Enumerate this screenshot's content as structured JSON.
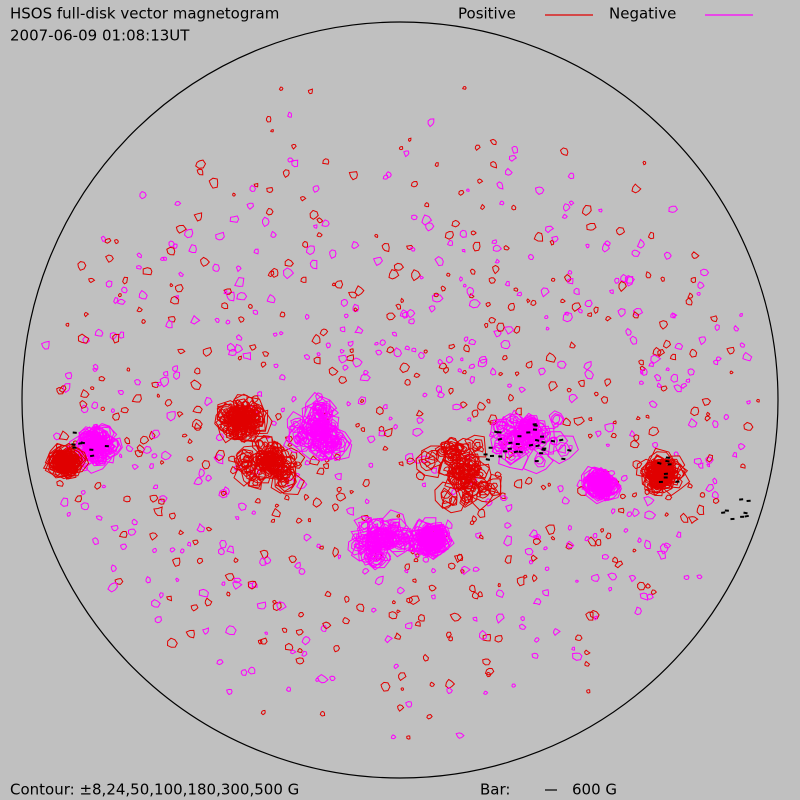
{
  "header": {
    "title": "HSOS full-disk vector magnetogram",
    "timestamp": "2007-06-09 01:08:13UT"
  },
  "legend": {
    "positive": "Positive",
    "negative": "Negative"
  },
  "footer": {
    "contour": "Contour: ±8,24,50,100,180,300,500 G",
    "bar_label": "Bar:",
    "bar_value": "600 G"
  }
}
